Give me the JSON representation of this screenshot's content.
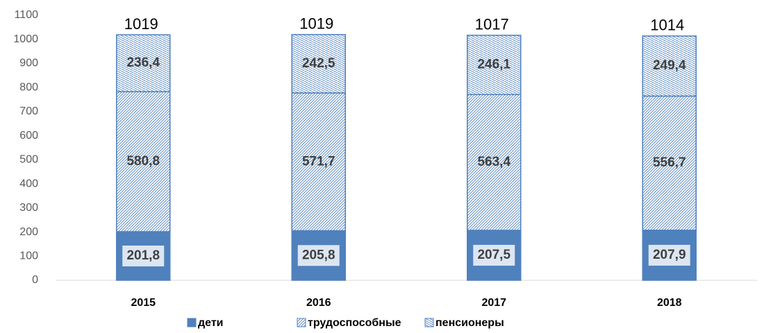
{
  "chart_data": {
    "type": "stacked_bar",
    "categories": [
      "2015",
      "2016",
      "2017",
      "2018"
    ],
    "series": [
      {
        "name": "дети",
        "color": "#4f81bd",
        "pattern": "solid",
        "values": [
          201.8,
          205.8,
          207.5,
          207.9
        ],
        "value_labels": [
          "201,8",
          "205,8",
          "207,5",
          "207,9"
        ]
      },
      {
        "name": "трудоспособные",
        "color": "#4f81bd",
        "pattern": "diagonal",
        "values": [
          580.8,
          571.7,
          563.4,
          556.7
        ],
        "value_labels": [
          "580,8",
          "571,7",
          "563,4",
          "556,7"
        ]
      },
      {
        "name": "пенсионеры",
        "color": "#4f81bd",
        "pattern": "dense",
        "values": [
          236.4,
          242.5,
          246.1,
          249.4
        ],
        "value_labels": [
          "236,4",
          "242,5",
          "246,1",
          "249,4"
        ]
      }
    ],
    "totals": [
      1019,
      1019,
      1017,
      1014
    ],
    "ylim": [
      0,
      1100
    ],
    "yticks": [
      0,
      100,
      200,
      300,
      400,
      500,
      600,
      700,
      800,
      900,
      1000,
      1100
    ],
    "grid": false,
    "legend": "bottom"
  }
}
